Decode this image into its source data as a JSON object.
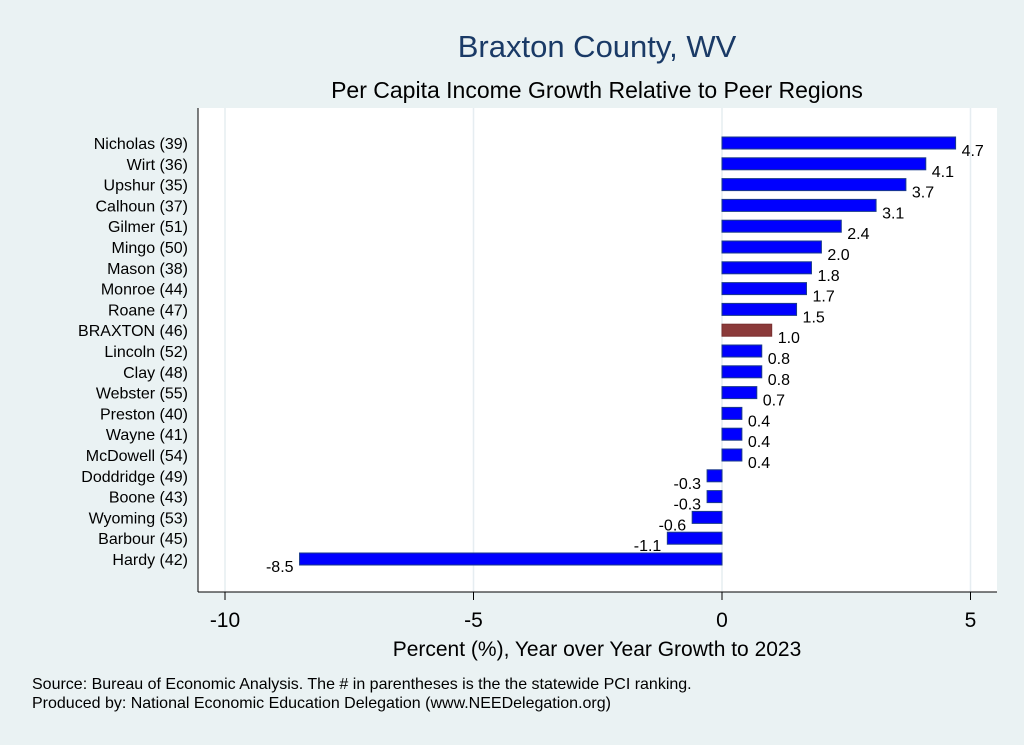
{
  "chart_data": {
    "type": "bar",
    "orientation": "horizontal",
    "title": "Braxton County, WV",
    "subtitle": "Per Capita Income Growth Relative to Peer Regions",
    "xlabel": "Percent (%), Year over Year Growth to 2023",
    "ylabel": "",
    "xlim": [
      -10.5,
      5.5
    ],
    "xticks": [
      -10,
      -5,
      0,
      5
    ],
    "xtick_labels": [
      "-10",
      "-5",
      "0",
      "5"
    ],
    "grid": true,
    "categories": [
      "Nicholas (39)",
      "Wirt (36)",
      "Upshur (35)",
      "Calhoun (37)",
      "Gilmer (51)",
      "Mingo (50)",
      "Mason (38)",
      "Monroe (44)",
      "Roane (47)",
      "BRAXTON (46)",
      "Lincoln (52)",
      "Clay (48)",
      "Webster (55)",
      "Preston (40)",
      "Wayne (41)",
      "McDowell (54)",
      "Doddridge (49)",
      "Boone (43)",
      "Wyoming (53)",
      "Barbour (45)",
      "Hardy (42)"
    ],
    "values": [
      4.7,
      4.1,
      3.7,
      3.1,
      2.4,
      2.0,
      1.8,
      1.7,
      1.5,
      1.0,
      0.8,
      0.8,
      0.7,
      0.4,
      0.4,
      0.4,
      -0.3,
      -0.3,
      -0.6,
      -1.1,
      -8.5
    ],
    "value_labels": [
      "4.7",
      "4.1",
      "3.7",
      "3.1",
      "2.4",
      "2.0",
      "1.8",
      "1.7",
      "1.5",
      "1.0",
      "0.8",
      "0.8",
      "0.7",
      "0.4",
      "0.4",
      "0.4",
      "-0.3",
      "-0.3",
      "-0.6",
      "-1.1",
      "-8.5"
    ],
    "highlight": "BRAXTON (46)",
    "colors": {
      "bar": "#0000ff",
      "highlight": "#8b3a3a",
      "background": "#eaf2f3",
      "title": "#1a3a66"
    }
  },
  "footer": {
    "source": "Source: Bureau of Economic Analysis. The # in parentheses is the the statewide PCI ranking.",
    "produced": "Produced by: National Economic Education Delegation (www.NEEDelegation.org)"
  }
}
